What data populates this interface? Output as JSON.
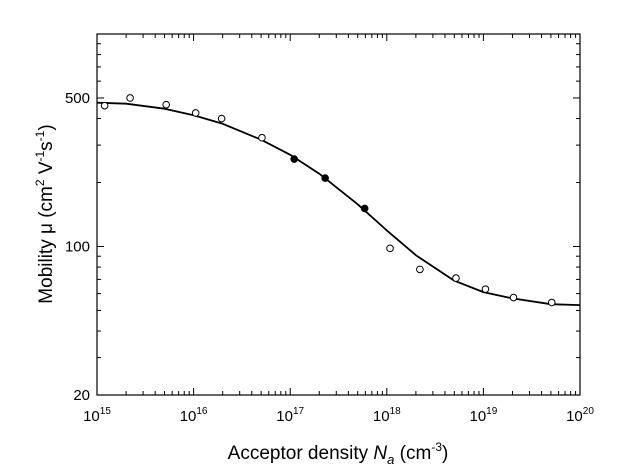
{
  "chart_data": {
    "type": "scatter",
    "x_scale": "log",
    "y_scale": "log",
    "xlim": [
      1000000000000000.0,
      1e+20
    ],
    "ylim": [
      20,
      1000
    ],
    "xlabel_parts": [
      "Acceptor density ",
      "N",
      "a",
      " (cm",
      "-3",
      ")"
    ],
    "ylabel_parts": [
      "Mobility ",
      "μ",
      " (cm",
      "2",
      " V",
      "-1",
      "s",
      "-1",
      ")"
    ],
    "x_ticks": [
      {
        "base": "10",
        "exp": "15",
        "value": 1000000000000000.0
      },
      {
        "base": "10",
        "exp": "16",
        "value": 1e+16
      },
      {
        "base": "10",
        "exp": "17",
        "value": 1e+17
      },
      {
        "base": "10",
        "exp": "18",
        "value": 1e+18
      },
      {
        "base": "10",
        "exp": "19",
        "value": 1e+19
      },
      {
        "base": "10",
        "exp": "20",
        "value": 1e+20
      }
    ],
    "y_ticks": [
      {
        "label": "20",
        "value": 20
      },
      {
        "label": "100",
        "value": 100
      },
      {
        "label": "500",
        "value": 500
      }
    ],
    "series": [
      {
        "marker": "open-circle",
        "points": [
          [
            1200000000000000.0,
            460
          ],
          [
            2200000000000000.0,
            500
          ],
          [
            5200000000000000.0,
            465
          ],
          [
            1.05e+16,
            425
          ],
          [
            1.95e+16,
            400
          ],
          [
            5.1e+16,
            325
          ],
          [
            1.08e+18,
            98
          ],
          [
            2.2e+18,
            78
          ],
          [
            5.2e+18,
            71
          ],
          [
            1.05e+19,
            63
          ],
          [
            2.05e+19,
            57.5
          ],
          [
            5.1e+19,
            54.5
          ]
        ]
      },
      {
        "marker": "filled-circle",
        "points": [
          [
            1.1e+17,
            258
          ],
          [
            2.3e+17,
            210
          ],
          [
            5.9e+17,
            151
          ]
        ]
      },
      {
        "marker": "line",
        "points": [
          [
            1000000000000000.0,
            475
          ],
          [
            2000000000000000.0,
            470
          ],
          [
            5000000000000000.0,
            445
          ],
          [
            1e+16,
            415
          ],
          [
            2e+16,
            378
          ],
          [
            5e+16,
            318
          ],
          [
            1e+17,
            270
          ],
          [
            2e+17,
            220
          ],
          [
            5e+17,
            158
          ],
          [
            1e+18,
            119
          ],
          [
            2e+18,
            91
          ],
          [
            5e+18,
            69
          ],
          [
            1e+19,
            61
          ],
          [
            2e+19,
            57
          ],
          [
            5e+19,
            53.5
          ],
          [
            1e+20,
            53
          ]
        ]
      }
    ]
  }
}
